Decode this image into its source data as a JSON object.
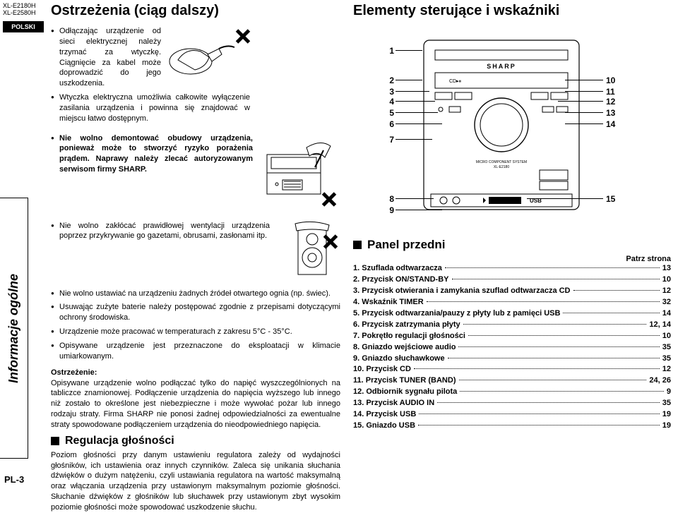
{
  "margin": {
    "model1": "XL-E2180H",
    "model2": "XL-E2580H",
    "lang": "POLSKI",
    "side_tab": "Informacje ogólne",
    "page_num": "PL-3"
  },
  "left": {
    "title": "Ostrzeżenia (ciąg dalszy)",
    "bullets_a": [
      "Odłączając urządzenie od sieci elektrycznej należy trzymać za wtyczkę. Ciągnięcie za kabel może doprowadzić do jego uszkodzenia.",
      "Wtyczka elektryczna umożliwia całkowite wyłączenie zasilania urządzenia i powinna się znajdować w miejscu łatwo dostępnym."
    ],
    "bullet_b_bold": "Nie wolno demontować obudowy urządzenia, ponieważ może to stworzyć ryzyko porażenia prądem. Naprawy należy zlecać autoryzowanym serwisom firmy SHARP.",
    "bullets_c": [
      "Nie wolno zakłócać prawidłowej wentylacji urządzenia poprzez przykrywanie go gazetami, obrusami, zasłonami itp."
    ],
    "bullets_d": [
      "Nie wolno ustawiać na urządzeniu żadnych źródeł otwartego ognia (np. świec).",
      "Usuwając zużyte baterie należy postępować zgodnie z przepisami dotyczącymi ochrony środowiska.",
      "Urządzenie może pracować w temperaturach z zakresu 5°C - 35°C.",
      "Opisywane urządzenie jest przeznaczone do eksploatacji w klimacie umiarkowanym."
    ],
    "warn_label": "Ostrzeżenie:",
    "warn_text": "Opisywane urządzenie wolno podłączać tylko do napięć wyszczególnionych na tabliczce znamionowej. Podłączenie urządzenia do napięcia wyższego lub innego niż zostało to określone jest niebezpieczne i może wywołać pożar lub innego rodzaju straty. Firma SHARP nie ponosi żadnej odpowiedzialności za ewentualne straty spowodowane podłączeniem urządzenia do nieodpowiedniego napięcia.",
    "reg_head": "Regulacja głośności",
    "reg_text": "Poziom głośności przy danym ustawieniu regulatora zależy od wydajności głośników, ich ustawienia oraz innych czynników. Zaleca się unikania słuchania dźwięków o dużym natężeniu, czyli ustawiania regulatora na wartość maksymalną oraz włączania urządzenia przy ustawionym maksymalnym poziomie głośności. Słuchanie dźwięków z głośników lub słuchawek przy ustawionym zbyt wysokim poziomie głośności może spowodować uszkodzenie słuchu."
  },
  "right": {
    "title": "Elementy sterujące i wskaźniki",
    "panel_head": "Panel przedni",
    "see_page": "Patrz strona",
    "callouts_left": [
      "1",
      "2",
      "3",
      "4",
      "5",
      "6",
      "7",
      "8",
      "9"
    ],
    "callouts_right": [
      "10",
      "11",
      "12",
      "13",
      "14",
      "15"
    ],
    "items": [
      {
        "n": "1",
        "label": "Szuflada odtwarzacza",
        "page": "13"
      },
      {
        "n": "2",
        "label": "Przycisk ON/STAND-BY",
        "page": "10"
      },
      {
        "n": "3",
        "label": "Przycisk otwierania i zamykania szuflad odtwarzacza CD",
        "page": "12"
      },
      {
        "n": "4",
        "label": "Wskaźnik TIMER",
        "page": "32"
      },
      {
        "n": "5",
        "label": "Przycisk odtwarzania/pauzy z płyty lub z pamięci USB",
        "page": "14"
      },
      {
        "n": "6",
        "label": "Przycisk zatrzymania płyty",
        "page": "12, 14"
      },
      {
        "n": "7",
        "label": "Pokrętło regulacji głośności",
        "page": "10"
      },
      {
        "n": "8",
        "label": "Gniazdo wejściowe audio",
        "page": "35"
      },
      {
        "n": "9",
        "label": "Gniazdo słuchawkowe",
        "page": "35"
      },
      {
        "n": "10",
        "label": "Przycisk CD",
        "page": "12"
      },
      {
        "n": "11",
        "label": "Przycisk TUNER (BAND)",
        "page": "24, 26"
      },
      {
        "n": "12",
        "label": "Odbiornik sygnału pilota",
        "page": "9"
      },
      {
        "n": "13",
        "label": "Przycisk AUDIO IN",
        "page": "35"
      },
      {
        "n": "14",
        "label": "Przycisk USB",
        "page": "19"
      },
      {
        "n": "15",
        "label": "Gniazdo USB",
        "page": "19"
      }
    ]
  },
  "device_label_1": "MICRO COMPONENT SYSTEM",
  "device_label_2": "XL-E2180",
  "device_usb": "USB",
  "sharp_brand": "SHARP"
}
